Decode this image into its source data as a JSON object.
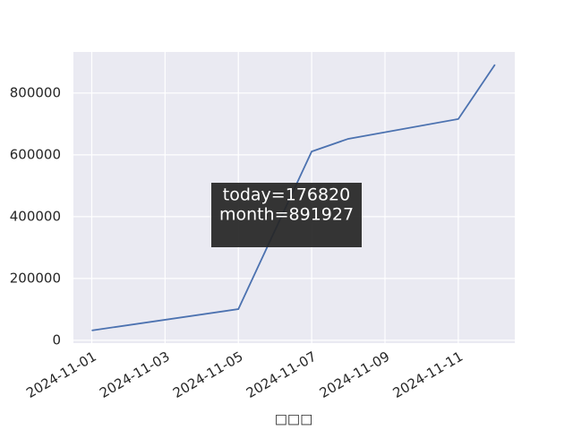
{
  "chart_data": {
    "type": "line",
    "xlabel": "□□□",
    "x": [
      "2024-11-01",
      "2024-11-05",
      "2024-11-07",
      "2024-11-08",
      "2024-11-11",
      "2024-11-12"
    ],
    "series": [
      {
        "color": "#4c72b0",
        "values": [
          32000,
          101000,
          611000,
          652000,
          716000,
          891927
        ]
      }
    ],
    "xlim": [
      "2024-10-31T12:00",
      "2024-11-12T13:00"
    ],
    "xticks": [
      "2024-11-01",
      "2024-11-03",
      "2024-11-05",
      "2024-11-07",
      "2024-11-09",
      "2024-11-11"
    ],
    "ylim": [
      -9000,
      933000
    ],
    "yticks": [
      0,
      200000,
      400000,
      600000,
      800000
    ],
    "grid": true,
    "annotation": [
      "today=176820",
      "month=891927"
    ]
  }
}
